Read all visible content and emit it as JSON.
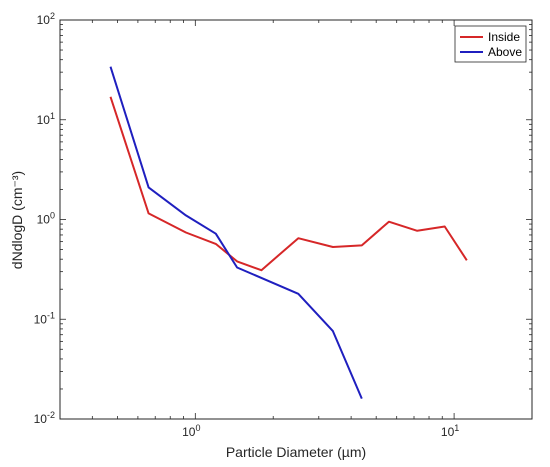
{
  "chart_data": {
    "type": "line",
    "title": "",
    "xlabel": "Particle Diameter (µm)",
    "ylabel": "dNdlogD (cm⁻³)",
    "xscale": "log",
    "yscale": "log",
    "xlim": [
      0.3,
      20
    ],
    "ylim": [
      0.01,
      100
    ],
    "grid": false,
    "legend_position": "top-right",
    "x_ticks": [
      {
        "value": 1,
        "base": "10",
        "exp": "0"
      },
      {
        "value": 10,
        "base": "10",
        "exp": "1"
      }
    ],
    "y_ticks": [
      {
        "value": 0.01,
        "base": "10",
        "exp": "-2"
      },
      {
        "value": 0.1,
        "base": "10",
        "exp": "-1"
      },
      {
        "value": 1,
        "base": "10",
        "exp": "0"
      },
      {
        "value": 10,
        "base": "10",
        "exp": "1"
      },
      {
        "value": 100,
        "base": "10",
        "exp": "2"
      }
    ],
    "series": [
      {
        "name": "Inside",
        "color": "#d62728",
        "x": [
          0.47,
          0.66,
          0.92,
          1.2,
          1.45,
          1.8,
          2.5,
          3.4,
          4.4,
          5.6,
          7.2,
          9.2,
          11.2
        ],
        "y": [
          17,
          1.15,
          0.74,
          0.57,
          0.38,
          0.31,
          0.65,
          0.53,
          0.55,
          0.95,
          0.77,
          0.85,
          0.39
        ]
      },
      {
        "name": "Above",
        "color": "#1f1fbf",
        "x": [
          0.47,
          0.66,
          0.92,
          1.2,
          1.45,
          2.5,
          3.4,
          4.4
        ],
        "y": [
          34,
          2.1,
          1.1,
          0.72,
          0.33,
          0.18,
          0.076,
          0.016
        ]
      }
    ]
  }
}
